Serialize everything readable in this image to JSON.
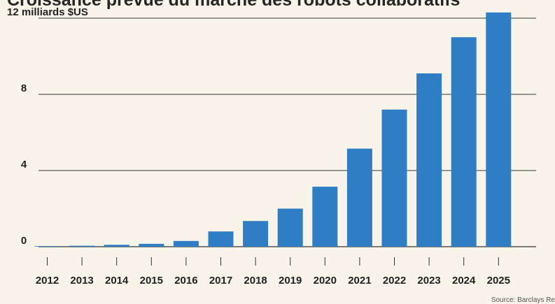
{
  "title": "Croissance prévue du marché des robots collaboratifs",
  "source": "Source: Barclays Research",
  "colors": {
    "background": "#f8f4e9",
    "bar": "#2f7dc4",
    "grid": "#333333",
    "text": "#222222"
  },
  "chart_data": {
    "type": "bar",
    "title": "Croissance prévue du marché des robots collaboratifs",
    "xlabel": "",
    "ylabel": "12 milliards $US",
    "ylim": [
      0,
      12
    ],
    "yticks": [
      0,
      4,
      8,
      12
    ],
    "ytick_labels": [
      "0",
      "4",
      "8",
      "12 milliards $US"
    ],
    "grid": true,
    "categories": [
      "2012",
      "2013",
      "2014",
      "2015",
      "2016",
      "2017",
      "2018",
      "2019",
      "2020",
      "2021",
      "2022",
      "2023",
      "2024",
      "2025"
    ],
    "values": [
      0.03,
      0.05,
      0.1,
      0.15,
      0.3,
      0.8,
      1.35,
      2.0,
      3.15,
      5.15,
      7.2,
      9.1,
      11.0,
      12.3
    ]
  }
}
